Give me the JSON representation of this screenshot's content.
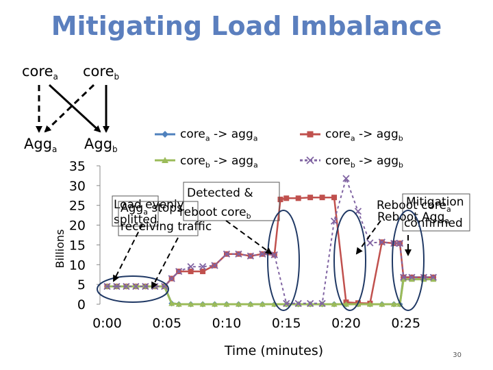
{
  "slide": {
    "title": "Mitigating Load Imbalance",
    "page_number": "30"
  },
  "topology": {
    "core_a": {
      "base": "core",
      "sub": "a"
    },
    "core_b": {
      "base": "core",
      "sub": "b"
    },
    "agg_a": {
      "base": "Agg",
      "sub": "a"
    },
    "agg_b": {
      "base": "Agg",
      "sub": "b"
    }
  },
  "legend": [
    {
      "base1": "core",
      "sub1": "a",
      "arrow": " -> agg",
      "sub2": "a",
      "color": "#4f81bd",
      "marker": "diamond"
    },
    {
      "base1": "core",
      "sub1": "a",
      "arrow": " -> agg",
      "sub2": "b",
      "color": "#c0504d",
      "marker": "square"
    },
    {
      "base1": "core",
      "sub1": "b",
      "arrow": " -> agg",
      "sub2": "a",
      "color": "#9bbb59",
      "marker": "triangle"
    },
    {
      "base1": "core",
      "sub1": "b",
      "arrow": " -> agg",
      "sub2": "b",
      "color": "#8064a2",
      "marker": "x"
    }
  ],
  "annotations": [
    {
      "lines": [
        [
          "Load evenly"
        ],
        [
          "splitted"
        ]
      ]
    },
    {
      "lines": [
        [
          "Agg",
          {
            "sub": "a"
          },
          " stops"
        ],
        [
          "receiving traffic"
        ]
      ]
    },
    {
      "lines": [
        [
          "Detected &"
        ],
        [
          "reboot core",
          {
            "sub": "b"
          }
        ]
      ]
    },
    {
      "lines": [
        [
          "Reboot core",
          {
            "sub": "a"
          }
        ]
      ]
    },
    {
      "lines": [
        [
          "Mitigation"
        ],
        [
          "confirmed"
        ]
      ]
    },
    {
      "lines": [
        [
          "Reboot Agg",
          {
            "sub": "a"
          }
        ]
      ]
    }
  ],
  "chart_data": {
    "type": "line",
    "title": "",
    "xlabel": "Time (minutes)",
    "ylabel": "Billions",
    "x_unit": "minutes",
    "xlim": [
      -0.6,
      30
    ],
    "ylim": [
      0,
      35
    ],
    "yticks": [
      0,
      5,
      10,
      15,
      20,
      25,
      30,
      35
    ],
    "xticks": [
      {
        "value": 0,
        "label": "0:00"
      },
      {
        "value": 5,
        "label": "0:05"
      },
      {
        "value": 10,
        "label": "0:10"
      },
      {
        "value": 15,
        "label": "0:15"
      },
      {
        "value": 20,
        "label": "0:20"
      },
      {
        "value": 25,
        "label": "0:25"
      }
    ],
    "series": [
      {
        "name": "core_a -> agg_a",
        "color": "#4f81bd",
        "marker": "diamond",
        "points": [
          [
            0,
            4.5
          ],
          [
            0.8,
            4.5
          ],
          [
            1.6,
            4.5
          ],
          [
            2.4,
            4.5
          ],
          [
            3.2,
            4.5
          ],
          [
            4,
            4.5
          ],
          [
            4.8,
            4.5
          ],
          [
            5.4,
            0.2
          ],
          [
            6,
            0
          ],
          [
            7,
            0
          ],
          [
            8,
            0
          ],
          [
            9,
            0
          ],
          [
            10,
            0
          ],
          [
            11,
            0
          ],
          [
            12,
            0
          ],
          [
            13,
            0
          ],
          [
            14,
            0
          ],
          [
            15,
            0
          ],
          [
            16,
            0
          ],
          [
            17,
            0
          ],
          [
            18,
            0
          ],
          [
            19,
            0
          ],
          [
            20,
            0
          ],
          [
            21,
            0
          ],
          [
            22,
            0
          ],
          [
            23,
            0
          ],
          [
            24,
            0
          ],
          [
            24.5,
            0
          ],
          [
            24.8,
            6.8
          ],
          [
            25.5,
            6.8
          ],
          [
            26.5,
            6.8
          ],
          [
            27.3,
            6.8
          ]
        ]
      },
      {
        "name": "core_a -> agg_b",
        "color": "#c0504d",
        "marker": "square",
        "points": [
          [
            0,
            4.5
          ],
          [
            0.8,
            4.5
          ],
          [
            1.6,
            4.5
          ],
          [
            2.4,
            4.5
          ],
          [
            3.2,
            4.5
          ],
          [
            4,
            4.5
          ],
          [
            4.8,
            4.5
          ],
          [
            5.4,
            6.5
          ],
          [
            6,
            8.3
          ],
          [
            7,
            8.3
          ],
          [
            8,
            8.3
          ],
          [
            9,
            9.8
          ],
          [
            10,
            12.7
          ],
          [
            11,
            12.7
          ],
          [
            12,
            12.2
          ],
          [
            13,
            12.7
          ],
          [
            14,
            12.5
          ],
          [
            14.5,
            26.5
          ],
          [
            15,
            26.8
          ],
          [
            16,
            26.8
          ],
          [
            17,
            27
          ],
          [
            18,
            27
          ],
          [
            19,
            27
          ],
          [
            20,
            0.5
          ],
          [
            21,
            0.3
          ],
          [
            22,
            0.2
          ],
          [
            23,
            15.7
          ],
          [
            24,
            15.4
          ],
          [
            24.5,
            15.4
          ],
          [
            24.8,
            6.8
          ],
          [
            25.5,
            6.8
          ],
          [
            26.5,
            6.8
          ],
          [
            27.3,
            6.8
          ]
        ]
      },
      {
        "name": "core_b -> agg_a",
        "color": "#9bbb59",
        "marker": "triangle",
        "points": [
          [
            0,
            4.5
          ],
          [
            0.8,
            4.5
          ],
          [
            1.6,
            4.5
          ],
          [
            2.4,
            4.5
          ],
          [
            3.2,
            4.5
          ],
          [
            4,
            4.5
          ],
          [
            4.8,
            4.5
          ],
          [
            5.4,
            0.2
          ],
          [
            6,
            0
          ],
          [
            7,
            0
          ],
          [
            8,
            0
          ],
          [
            9,
            0
          ],
          [
            10,
            0
          ],
          [
            11,
            0
          ],
          [
            12,
            0
          ],
          [
            13,
            0
          ],
          [
            14,
            0
          ],
          [
            15,
            0
          ],
          [
            16,
            0
          ],
          [
            17,
            0
          ],
          [
            18,
            0
          ],
          [
            19,
            0
          ],
          [
            20,
            0
          ],
          [
            21,
            0
          ],
          [
            22,
            0
          ],
          [
            23,
            0
          ],
          [
            24,
            0
          ],
          [
            24.5,
            0
          ],
          [
            24.8,
            6.3
          ],
          [
            25.5,
            6.3
          ],
          [
            26.5,
            6.3
          ],
          [
            27.3,
            6.3
          ]
        ]
      },
      {
        "name": "core_b -> agg_b",
        "color": "#8064a2",
        "marker": "x",
        "points": [
          [
            0,
            4.5
          ],
          [
            0.8,
            4.5
          ],
          [
            1.6,
            4.5
          ],
          [
            2.4,
            4.5
          ],
          [
            3.2,
            4.5
          ],
          [
            4,
            4.5
          ],
          [
            4.8,
            4.5
          ],
          [
            5.4,
            6.5
          ],
          [
            6,
            8.3
          ],
          [
            7,
            9.5
          ],
          [
            8,
            9.5
          ],
          [
            9,
            9.8
          ],
          [
            10,
            12.7
          ],
          [
            11,
            12.7
          ],
          [
            12,
            12.2
          ],
          [
            13,
            12.7
          ],
          [
            14,
            12.5
          ],
          [
            15,
            0.2
          ],
          [
            16,
            0.2
          ],
          [
            17,
            0.2
          ],
          [
            18,
            0.2
          ],
          [
            19,
            21
          ],
          [
            20,
            31.8
          ],
          [
            21,
            23.5
          ],
          [
            22,
            15.5
          ],
          [
            23,
            15.7
          ],
          [
            24,
            15.4
          ],
          [
            24.5,
            15.4
          ],
          [
            24.8,
            6.8
          ],
          [
            25.5,
            6.8
          ],
          [
            26.5,
            6.8
          ],
          [
            27.3,
            6.8
          ]
        ]
      }
    ]
  }
}
